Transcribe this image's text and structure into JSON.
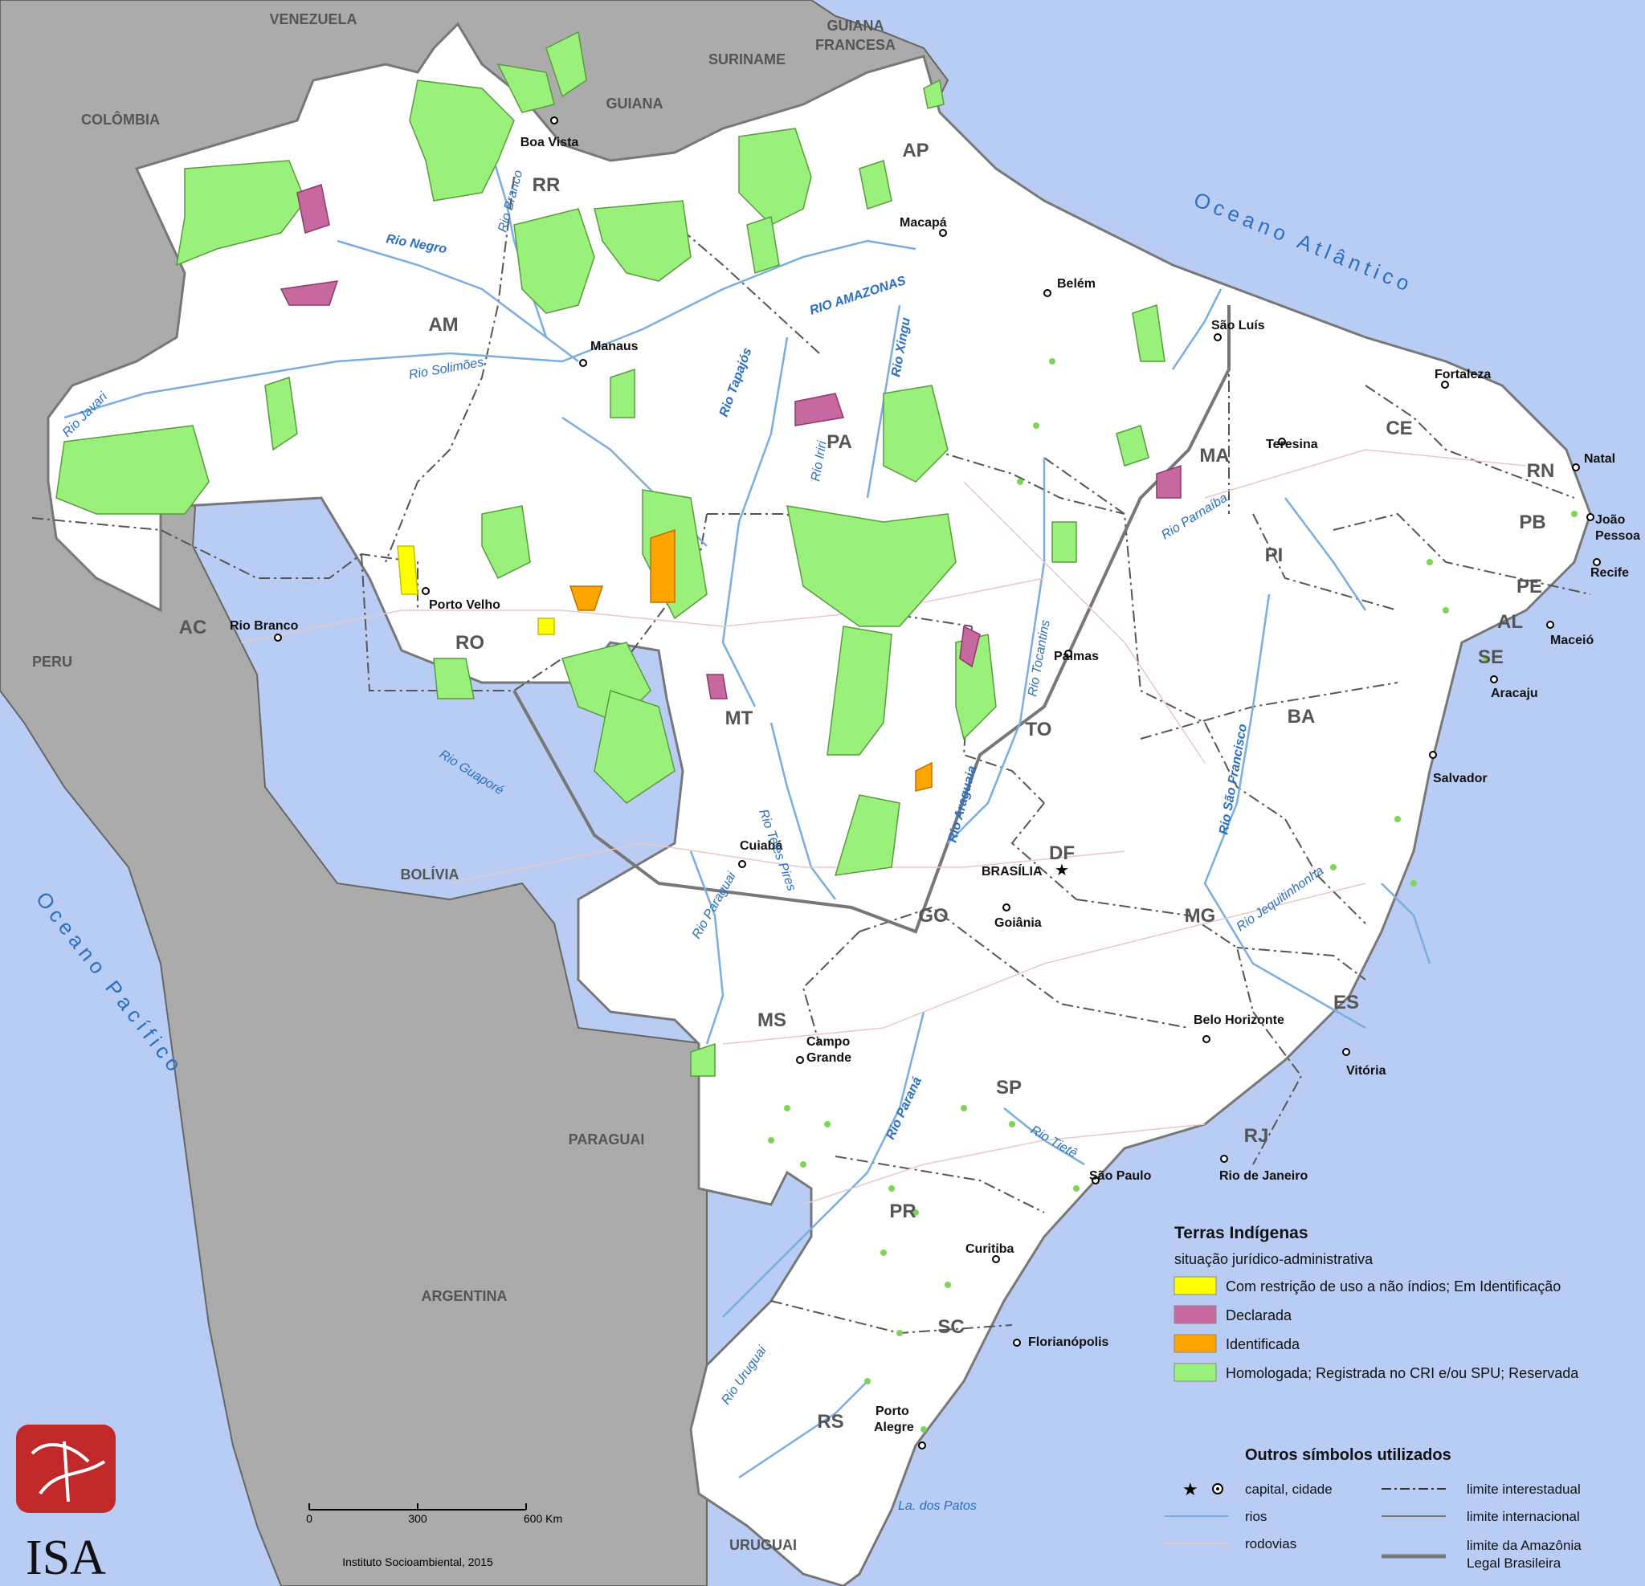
{
  "countries": {
    "venezuela": "VENEZUELA",
    "colombia": "COLÔMBIA",
    "guiana": "GUIANA",
    "suriname": "SURINAME",
    "guiana_francesa_1": "GUIANA",
    "guiana_francesa_2": "FRANCESA",
    "peru": "PERU",
    "bolivia": "BOLÍVIA",
    "paraguai": "PARAGUAI",
    "argentina": "ARGENTINA",
    "uruguai": "URUGUAI"
  },
  "oceans": {
    "atlantic": "Oceano Atlântico",
    "pacific": "Oceano Pacífico"
  },
  "states": [
    "RR",
    "AP",
    "AM",
    "PA",
    "MA",
    "CE",
    "RN",
    "PB",
    "PE",
    "AL",
    "SE",
    "PI",
    "AC",
    "RO",
    "MT",
    "TO",
    "BA",
    "DF",
    "GO",
    "MG",
    "ES",
    "MS",
    "SP",
    "RJ",
    "PR",
    "SC",
    "RS"
  ],
  "cities": [
    "Boa Vista",
    "Macapá",
    "Belém",
    "São Luís",
    "Fortaleza",
    "Manaus",
    "Teresina",
    "Natal",
    "João",
    "Pessoa",
    "Recife",
    "Maceió",
    "Aracaju",
    "Palmas",
    "Porto Velho",
    "Rio Branco",
    "Salvador",
    "Cuiabá",
    "BRASÍLIA",
    "Goiânia",
    "Belo Horizonte",
    "Campo",
    "Grande",
    "Vitória",
    "São Paulo",
    "Rio de Janeiro",
    "Curitiba",
    "Florianópolis",
    "Porto",
    "Alegre"
  ],
  "rivers": [
    "Rio Negro",
    "Rio Branco",
    "RIO AMAZONAS",
    "Rio Xingu",
    "Rio Tapajós",
    "Rio Solimões",
    "Rio Javari",
    "Rio Iriri",
    "Rio Parnaíba",
    "Rio Tocantins",
    "Rio São Francisco",
    "Rio Teles Pires",
    "Rio Araguaia",
    "Rio Guaporé",
    "Rio Paraguai",
    "Rio Jequitinhonha",
    "Rio Paraná",
    "Rio Tietê",
    "Rio Uruguai",
    "La. dos Patos"
  ],
  "legend": {
    "title": "Terras Indígenas",
    "subtitle": "situação jurídico-administrativa",
    "items": [
      {
        "label": "Com restrição de uso a não índios; Em Identificação",
        "color": "#ffff00"
      },
      {
        "label": "Declarada",
        "color": "#c868a0"
      },
      {
        "label": "Identificada",
        "color": "#ffa500"
      },
      {
        "label": "Homologada; Registrada no CRI e/ou SPU; Reservada",
        "color": "#99f07a"
      }
    ],
    "other_title": "Outros símbolos utilizados",
    "other": {
      "capital": "capital, cidade",
      "rios": "rios",
      "rodovias": "rodovias",
      "interestadual": "limite interestadual",
      "internacional": "limite internacional",
      "amazonia_1": "limite da Amazônia",
      "amazonia_2": "Legal Brasileira"
    }
  },
  "scale": {
    "tick0": "0",
    "tick1": "300",
    "tick2": "600 Km",
    "credit": "Instituto Socioambiental, 2015"
  },
  "logo": {
    "text": "ISA"
  }
}
